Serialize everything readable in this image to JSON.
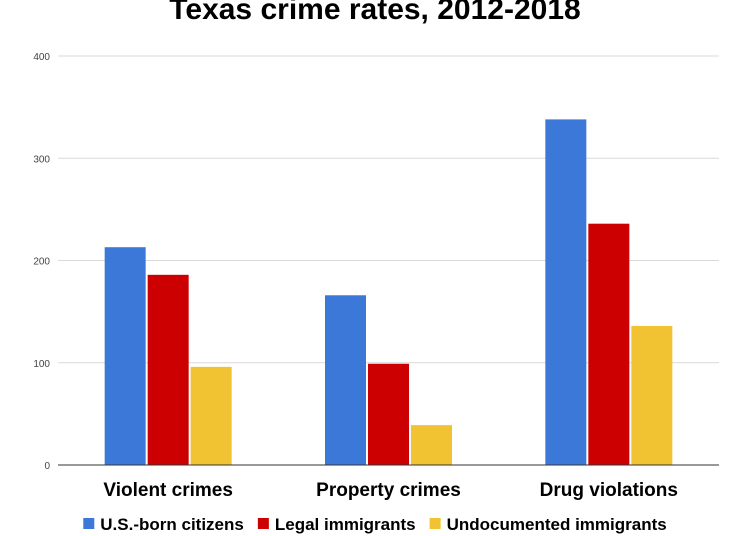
{
  "chart_data": {
    "type": "bar",
    "title": "Texas crime rates, 2012-2018",
    "xlabel": "",
    "ylabel": "",
    "ylim": [
      0,
      400
    ],
    "yticks": [
      0,
      100,
      200,
      300,
      400
    ],
    "grid": true,
    "legend_position": "bottom",
    "categories": [
      "Violent crimes",
      "Property crimes",
      "Drug violations"
    ],
    "series": [
      {
        "name": "U.S.-born citizens",
        "color": "#3c78d8",
        "values": [
          213,
          166,
          338
        ]
      },
      {
        "name": "Legal immigrants",
        "color": "#cc0000",
        "values": [
          186,
          99,
          236
        ]
      },
      {
        "name": "Undocumented immigrants",
        "color": "#f1c232",
        "values": [
          96,
          39,
          136
        ]
      }
    ]
  }
}
